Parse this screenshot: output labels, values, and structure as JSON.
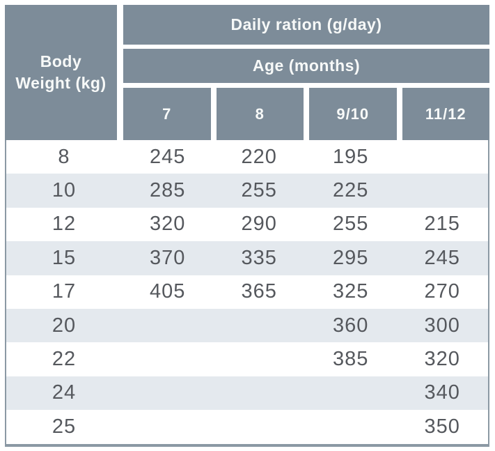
{
  "table": {
    "corner_line1": "Body",
    "corner_line2": "Weight (kg)",
    "top_header": "Daily ration (g/day)",
    "group_header": "Age (months)",
    "age_columns": [
      "7",
      "8",
      "9/10",
      "11/12"
    ],
    "rows": [
      {
        "weight": "8",
        "values": [
          "245",
          "220",
          "195",
          ""
        ]
      },
      {
        "weight": "10",
        "values": [
          "285",
          "255",
          "225",
          ""
        ]
      },
      {
        "weight": "12",
        "values": [
          "320",
          "290",
          "255",
          "215"
        ]
      },
      {
        "weight": "15",
        "values": [
          "370",
          "335",
          "295",
          "245"
        ]
      },
      {
        "weight": "17",
        "values": [
          "405",
          "365",
          "325",
          "270"
        ]
      },
      {
        "weight": "20",
        "values": [
          "",
          "",
          "360",
          "300"
        ]
      },
      {
        "weight": "22",
        "values": [
          "",
          "",
          "385",
          "320"
        ]
      },
      {
        "weight": "24",
        "values": [
          "",
          "",
          "",
          "340"
        ]
      },
      {
        "weight": "25",
        "values": [
          "",
          "",
          "",
          "350"
        ]
      }
    ],
    "colors": {
      "header_bg": "#7d8c99",
      "header_text": "#f7f9f8",
      "stripe_row_bg": "#e4e9ee",
      "body_text": "#55585d",
      "border": "#8b99a4"
    }
  },
  "chart_data": {
    "type": "table",
    "title": "Daily ration (g/day)",
    "row_header": "Body Weight (kg)",
    "column_group_label": "Age (months)",
    "columns": [
      "7",
      "8",
      "9/10",
      "11/12"
    ],
    "rows": [
      {
        "body_weight_kg": 8,
        "daily_ration_g": [
          245,
          220,
          195,
          null
        ]
      },
      {
        "body_weight_kg": 10,
        "daily_ration_g": [
          285,
          255,
          225,
          null
        ]
      },
      {
        "body_weight_kg": 12,
        "daily_ration_g": [
          320,
          290,
          255,
          215
        ]
      },
      {
        "body_weight_kg": 15,
        "daily_ration_g": [
          370,
          335,
          295,
          245
        ]
      },
      {
        "body_weight_kg": 17,
        "daily_ration_g": [
          405,
          365,
          325,
          270
        ]
      },
      {
        "body_weight_kg": 20,
        "daily_ration_g": [
          null,
          null,
          360,
          300
        ]
      },
      {
        "body_weight_kg": 22,
        "daily_ration_g": [
          null,
          null,
          385,
          320
        ]
      },
      {
        "body_weight_kg": 24,
        "daily_ration_g": [
          null,
          null,
          null,
          340
        ]
      },
      {
        "body_weight_kg": 25,
        "daily_ration_g": [
          null,
          null,
          null,
          350
        ]
      }
    ],
    "layout": {
      "zebra_striping": true,
      "first_data_row_background": "white"
    }
  }
}
